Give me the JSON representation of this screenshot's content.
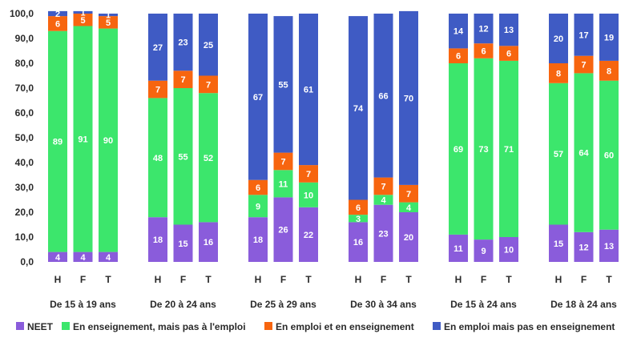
{
  "chart_data": {
    "type": "bar",
    "stacked": true,
    "groups": [
      {
        "label": "De 15 à 19 ans",
        "categories": [
          "H",
          "F",
          "T"
        ]
      },
      {
        "label": "De 20 à 24 ans",
        "categories": [
          "H",
          "F",
          "T"
        ]
      },
      {
        "label": "De 25 à 29 ans",
        "categories": [
          "H",
          "F",
          "T"
        ]
      },
      {
        "label": "De 30 à 34 ans",
        "categories": [
          "H",
          "F",
          "T"
        ]
      },
      {
        "label": "De 15 à 24 ans",
        "categories": [
          "H",
          "F",
          "T"
        ]
      },
      {
        "label": "De 18 à 24 ans",
        "categories": [
          "H",
          "F",
          "T"
        ]
      }
    ],
    "series": [
      {
        "name": "NEET",
        "color": "#8a5cdb",
        "values": [
          4,
          4,
          4,
          18,
          15,
          16,
          18,
          26,
          22,
          16,
          23,
          20,
          11,
          9,
          10,
          15,
          12,
          13
        ]
      },
      {
        "name": "En enseignement, mais pas à l'emploi",
        "color": "#3ce66c",
        "values": [
          89,
          91,
          90,
          48,
          55,
          52,
          9,
          11,
          10,
          3,
          4,
          4,
          69,
          73,
          71,
          57,
          64,
          60
        ]
      },
      {
        "name": "En emploi et en enseignement",
        "color": "#f7650f",
        "values": [
          6,
          5,
          5,
          7,
          7,
          7,
          6,
          7,
          7,
          6,
          7,
          7,
          6,
          6,
          6,
          8,
          7,
          8
        ]
      },
      {
        "name": "En emploi mais pas en enseignement",
        "color": "#3f5bc4",
        "values": [
          2,
          1,
          1,
          27,
          23,
          25,
          67,
          55,
          61,
          74,
          66,
          70,
          14,
          12,
          13,
          20,
          17,
          19
        ]
      }
    ],
    "y_ticks": [
      "0,0",
      "10,0",
      "20,0",
      "30,0",
      "40,0",
      "50,0",
      "60,0",
      "70,0",
      "80,0",
      "90,0",
      "100,0"
    ],
    "ylim": [
      0,
      100
    ],
    "grid": false,
    "legend_position": "bottom",
    "title": "",
    "xlabel": "",
    "ylabel": ""
  }
}
